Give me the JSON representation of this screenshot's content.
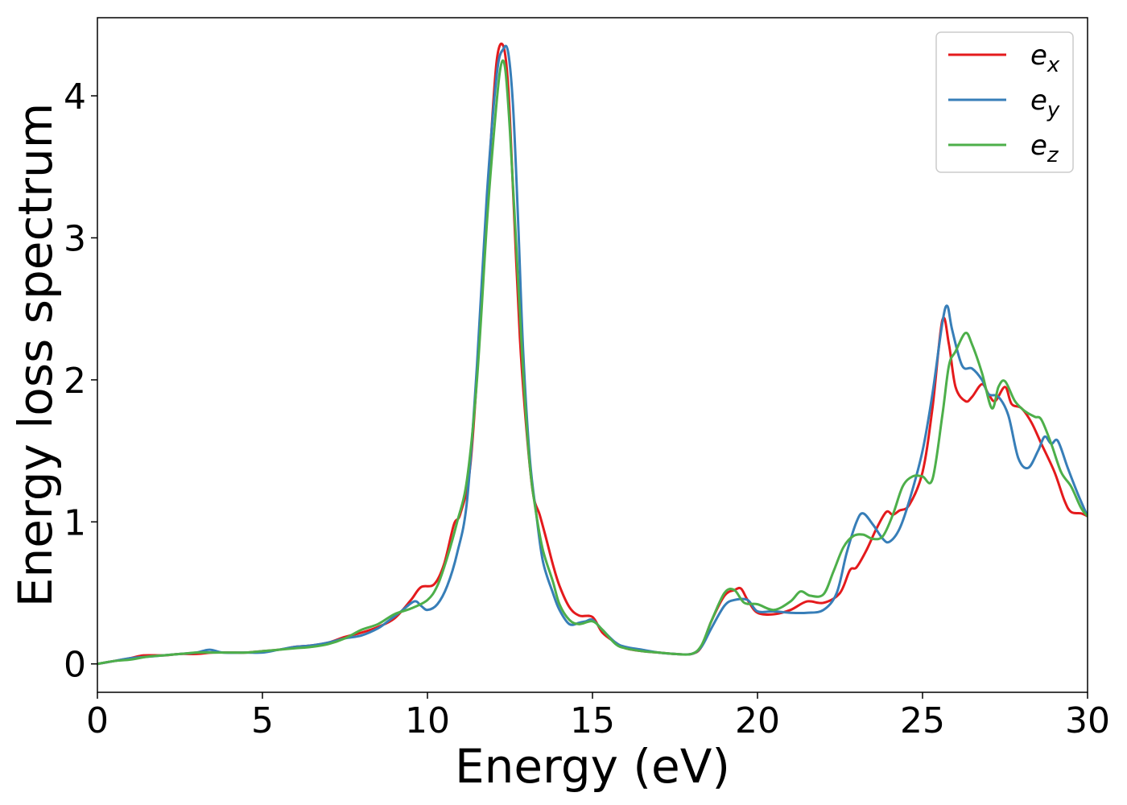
{
  "chart_data": {
    "type": "line",
    "title": "",
    "xlabel": "Energy (eV)",
    "ylabel": "Energy loss spectrum",
    "xlim": [
      0,
      30
    ],
    "ylim": [
      -0.2,
      4.55
    ],
    "xticks": [
      0,
      5,
      10,
      15,
      20,
      25,
      30
    ],
    "xtick_labels": [
      "0",
      "5",
      "10",
      "15",
      "20",
      "25",
      "30"
    ],
    "yticks": [
      0,
      1,
      2,
      3,
      4
    ],
    "ytick_labels": [
      "0",
      "1",
      "2",
      "3",
      "4"
    ],
    "grid": false,
    "legend_position": "top-right",
    "series": [
      {
        "name": "e_x",
        "legend_base": "e",
        "legend_sub": "x",
        "color": "#e41a1c",
        "x": [
          0,
          0.5,
          1.0,
          1.4,
          2.0,
          2.5,
          3.0,
          3.5,
          4.0,
          4.5,
          5.0,
          5.5,
          6.0,
          6.5,
          7.0,
          7.5,
          8.0,
          8.5,
          9.0,
          9.5,
          9.8,
          10.2,
          10.5,
          10.8,
          11.0,
          11.3,
          11.6,
          11.9,
          12.1,
          12.3,
          12.45,
          12.6,
          12.8,
          13.0,
          13.2,
          13.4,
          13.6,
          13.8,
          14.0,
          14.3,
          14.6,
          15.0,
          15.3,
          15.7,
          16.0,
          16.5,
          17.0,
          17.5,
          18.0,
          18.3,
          18.6,
          19.0,
          19.3,
          19.5,
          19.7,
          20.0,
          20.5,
          21.0,
          21.5,
          22.0,
          22.5,
          22.8,
          23.0,
          23.3,
          23.6,
          23.9,
          24.1,
          24.3,
          24.6,
          25.0,
          25.3,
          25.6,
          25.8,
          26.0,
          26.3,
          26.5,
          26.8,
          27.0,
          27.2,
          27.5,
          27.7,
          28.0,
          28.3,
          28.6,
          29.0,
          29.3,
          29.5,
          29.8,
          30.0
        ],
        "values": [
          0.0,
          0.02,
          0.04,
          0.06,
          0.06,
          0.07,
          0.07,
          0.08,
          0.08,
          0.08,
          0.09,
          0.1,
          0.12,
          0.13,
          0.15,
          0.19,
          0.22,
          0.26,
          0.32,
          0.45,
          0.54,
          0.56,
          0.7,
          0.98,
          1.06,
          1.4,
          2.4,
          3.6,
          4.25,
          4.35,
          4.05,
          3.3,
          2.3,
          1.65,
          1.2,
          1.05,
          0.88,
          0.7,
          0.55,
          0.4,
          0.34,
          0.33,
          0.22,
          0.15,
          0.11,
          0.09,
          0.08,
          0.07,
          0.07,
          0.12,
          0.3,
          0.48,
          0.52,
          0.53,
          0.45,
          0.36,
          0.35,
          0.38,
          0.44,
          0.43,
          0.5,
          0.66,
          0.68,
          0.8,
          0.95,
          1.07,
          1.05,
          1.08,
          1.12,
          1.35,
          1.8,
          2.42,
          2.25,
          1.95,
          1.85,
          1.88,
          1.97,
          1.9,
          1.85,
          1.95,
          1.83,
          1.8,
          1.7,
          1.55,
          1.35,
          1.15,
          1.07,
          1.06,
          1.04
        ]
      },
      {
        "name": "e_y",
        "legend_base": "e",
        "legend_sub": "y",
        "color": "#377eb8",
        "x": [
          0,
          0.5,
          1.0,
          1.5,
          2.0,
          2.5,
          3.0,
          3.4,
          3.8,
          4.5,
          5.0,
          5.5,
          6.0,
          6.5,
          7.0,
          7.5,
          8.0,
          8.5,
          8.8,
          9.2,
          9.6,
          9.8,
          10.0,
          10.3,
          10.6,
          10.9,
          11.2,
          11.5,
          11.8,
          12.1,
          12.3,
          12.45,
          12.6,
          12.75,
          12.9,
          13.1,
          13.3,
          13.5,
          13.8,
          14.0,
          14.3,
          14.6,
          14.8,
          15.0,
          15.3,
          15.7,
          16.0,
          16.5,
          17.0,
          17.5,
          18.0,
          18.3,
          18.6,
          19.0,
          19.3,
          19.7,
          20.0,
          20.5,
          21.0,
          21.5,
          22.0,
          22.4,
          22.7,
          23.0,
          23.2,
          23.5,
          23.8,
          24.0,
          24.3,
          24.6,
          25.0,
          25.3,
          25.6,
          25.75,
          25.9,
          26.2,
          26.5,
          26.8,
          27.0,
          27.3,
          27.6,
          27.9,
          28.2,
          28.5,
          28.7,
          28.9,
          29.1,
          29.4,
          29.7,
          30.0
        ],
        "values": [
          0.0,
          0.02,
          0.04,
          0.05,
          0.06,
          0.07,
          0.08,
          0.1,
          0.08,
          0.08,
          0.08,
          0.1,
          0.12,
          0.13,
          0.15,
          0.18,
          0.2,
          0.25,
          0.3,
          0.37,
          0.44,
          0.41,
          0.38,
          0.42,
          0.55,
          0.78,
          1.15,
          2.1,
          3.3,
          4.15,
          4.33,
          4.3,
          3.9,
          3.1,
          2.2,
          1.45,
          1.05,
          0.72,
          0.5,
          0.38,
          0.28,
          0.29,
          0.3,
          0.31,
          0.24,
          0.15,
          0.12,
          0.1,
          0.08,
          0.07,
          0.07,
          0.12,
          0.25,
          0.41,
          0.45,
          0.45,
          0.37,
          0.37,
          0.36,
          0.36,
          0.38,
          0.5,
          0.78,
          1.0,
          1.06,
          0.98,
          0.88,
          0.86,
          0.95,
          1.15,
          1.5,
          1.9,
          2.4,
          2.52,
          2.35,
          2.1,
          2.08,
          2.0,
          1.9,
          1.88,
          1.75,
          1.45,
          1.38,
          1.5,
          1.6,
          1.55,
          1.57,
          1.38,
          1.2,
          1.04
        ]
      },
      {
        "name": "e_z",
        "legend_base": "e",
        "legend_sub": "z",
        "color": "#4daf4a",
        "x": [
          0,
          0.5,
          1.0,
          1.5,
          2.0,
          2.5,
          3.0,
          3.5,
          4.0,
          4.5,
          5.0,
          5.5,
          6.0,
          6.5,
          7.0,
          7.5,
          8.0,
          8.5,
          9.0,
          9.5,
          10.0,
          10.3,
          10.6,
          10.9,
          11.2,
          11.5,
          11.8,
          12.0,
          12.2,
          12.35,
          12.5,
          12.7,
          12.9,
          13.1,
          13.3,
          13.5,
          13.8,
          14.0,
          14.3,
          14.6,
          15.0,
          15.3,
          15.7,
          16.0,
          16.5,
          17.0,
          17.5,
          18.0,
          18.3,
          18.6,
          19.0,
          19.3,
          19.6,
          20.0,
          20.5,
          21.0,
          21.3,
          21.6,
          22.0,
          22.3,
          22.6,
          22.9,
          23.2,
          23.5,
          23.8,
          24.1,
          24.4,
          24.7,
          25.0,
          25.3,
          25.6,
          25.8,
          26.0,
          26.3,
          26.5,
          26.8,
          27.1,
          27.3,
          27.5,
          27.8,
          28.1,
          28.4,
          28.6,
          28.9,
          29.2,
          29.5,
          29.8,
          30.0
        ],
        "values": [
          0.0,
          0.02,
          0.03,
          0.05,
          0.06,
          0.07,
          0.08,
          0.08,
          0.08,
          0.08,
          0.09,
          0.1,
          0.11,
          0.12,
          0.14,
          0.18,
          0.24,
          0.28,
          0.35,
          0.39,
          0.45,
          0.55,
          0.75,
          1.0,
          1.3,
          2.0,
          3.1,
          3.7,
          4.18,
          4.2,
          3.75,
          2.9,
          2.05,
          1.4,
          1.05,
          0.8,
          0.58,
          0.42,
          0.31,
          0.28,
          0.3,
          0.24,
          0.14,
          0.11,
          0.09,
          0.08,
          0.07,
          0.07,
          0.13,
          0.3,
          0.5,
          0.52,
          0.43,
          0.42,
          0.38,
          0.44,
          0.51,
          0.48,
          0.49,
          0.65,
          0.82,
          0.9,
          0.91,
          0.88,
          0.9,
          1.05,
          1.25,
          1.32,
          1.32,
          1.3,
          1.75,
          2.1,
          2.2,
          2.33,
          2.25,
          2.05,
          1.8,
          1.95,
          1.99,
          1.85,
          1.78,
          1.74,
          1.72,
          1.55,
          1.35,
          1.25,
          1.1,
          1.04
        ]
      }
    ]
  }
}
